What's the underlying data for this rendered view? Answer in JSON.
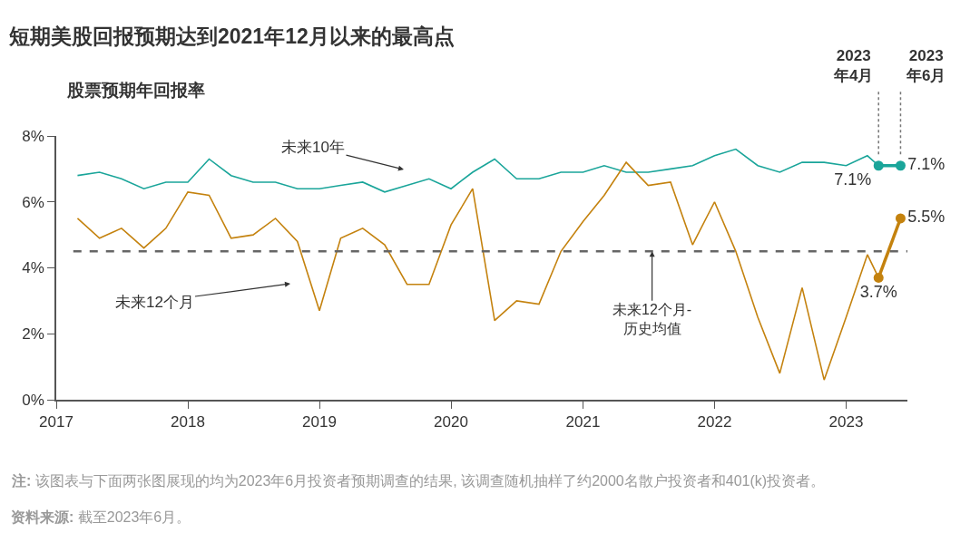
{
  "chart_data": {
    "type": "line",
    "title": "短期美股回报预期达到2021年12月以来的最高点",
    "subtitle": "股票预期年回报率",
    "x": [
      "2017-03",
      "2017-05",
      "2017-07",
      "2017-09",
      "2017-11",
      "2018-01",
      "2018-03",
      "2018-05",
      "2018-07",
      "2018-09",
      "2018-11",
      "2019-01",
      "2019-03",
      "2019-05",
      "2019-07",
      "2019-09",
      "2019-11",
      "2020-01",
      "2020-03",
      "2020-05",
      "2020-07",
      "2020-09",
      "2020-11",
      "2021-01",
      "2021-03",
      "2021-05",
      "2021-07",
      "2021-09",
      "2021-11",
      "2022-01",
      "2022-03",
      "2022-05",
      "2022-07",
      "2022-09",
      "2022-11",
      "2023-01",
      "2023-03",
      "2023-04"
    ],
    "series": [
      {
        "color": "#1aa59a",
        "values": [
          6.8,
          6.9,
          6.7,
          6.4,
          6.6,
          6.6,
          7.3,
          6.8,
          6.6,
          6.6,
          6.4,
          6.4,
          6.5,
          6.6,
          6.3,
          6.5,
          6.7,
          6.4,
          6.9,
          7.3,
          6.7,
          6.7,
          6.9,
          6.9,
          7.1,
          6.9,
          6.9,
          7.0,
          7.1,
          7.4,
          7.6,
          7.1,
          6.9,
          7.2,
          7.2,
          7.1,
          7.4,
          7.1
        ]
      },
      {
        "color": "#c4820e",
        "values": [
          5.5,
          4.9,
          5.2,
          4.6,
          5.2,
          6.3,
          6.2,
          4.9,
          5.0,
          5.5,
          4.8,
          2.7,
          4.9,
          5.2,
          4.7,
          3.5,
          3.5,
          5.3,
          6.4,
          2.4,
          3.0,
          2.9,
          4.5,
          5.4,
          6.2,
          7.2,
          6.5,
          6.6,
          4.7,
          6.0,
          4.5,
          2.5,
          0.8,
          3.4,
          0.6,
          2.5,
          4.4,
          3.7
        ]
      },
      {
        "color": "#1aa59a",
        "x": [
          "2023-04",
          "2023-06"
        ],
        "values": [
          7.1,
          7.1
        ],
        "marker": "circle",
        "value_labels": [
          "7.1%",
          "7.1%"
        ]
      },
      {
        "color": "#c4820e",
        "x": [
          "2023-04",
          "2023-06"
        ],
        "values": [
          3.7,
          5.5
        ],
        "marker": "circle",
        "value_labels": [
          "3.7%",
          "5.5%"
        ]
      }
    ],
    "xlim": [
      "2017-01-01",
      "2023-06-20"
    ],
    "xticks": [
      {
        "value": "2017-01-01",
        "label": "2017"
      },
      {
        "value": "2018-01-01",
        "label": "2018"
      },
      {
        "value": "2019-01-01",
        "label": "2019"
      },
      {
        "value": "2020-01-01",
        "label": "2020"
      },
      {
        "value": "2021-01-01",
        "label": "2021"
      },
      {
        "value": "2022-01-01",
        "label": "2022"
      },
      {
        "value": "2023-01-01",
        "label": "2023"
      }
    ],
    "ylim": [
      0,
      8
    ],
    "yticks": [
      {
        "value": 0,
        "label": "0%"
      },
      {
        "value": 2,
        "label": "2%"
      },
      {
        "value": 4,
        "label": "4%"
      },
      {
        "value": 6,
        "label": "6%"
      },
      {
        "value": 8,
        "label": "8%"
      }
    ],
    "grid": false,
    "marker": "none",
    "line_style": "solid",
    "ref_lines": [
      {
        "axis": "y",
        "value": 4.5,
        "label": "未来12个月-\n历史均值",
        "color": "#666666",
        "line_style": "dashed"
      },
      {
        "axis": "x",
        "value": "2023-04",
        "label": "2023\n年4月",
        "color": "#777777",
        "line_style": "dotted"
      },
      {
        "axis": "x",
        "value": "2023-06",
        "label": "2023\n年6月",
        "color": "#777777",
        "line_style": "dotted"
      }
    ],
    "annotations": [
      "未来10年",
      "未来12个月",
      "注: 该图表与下面两张图展现的均为2023年6月投资者预期调查的结果, 该调查随机抽样了约2000名散户投资者和401(k)投资者。",
      "资料来源: 截至2023年6月。"
    ]
  }
}
